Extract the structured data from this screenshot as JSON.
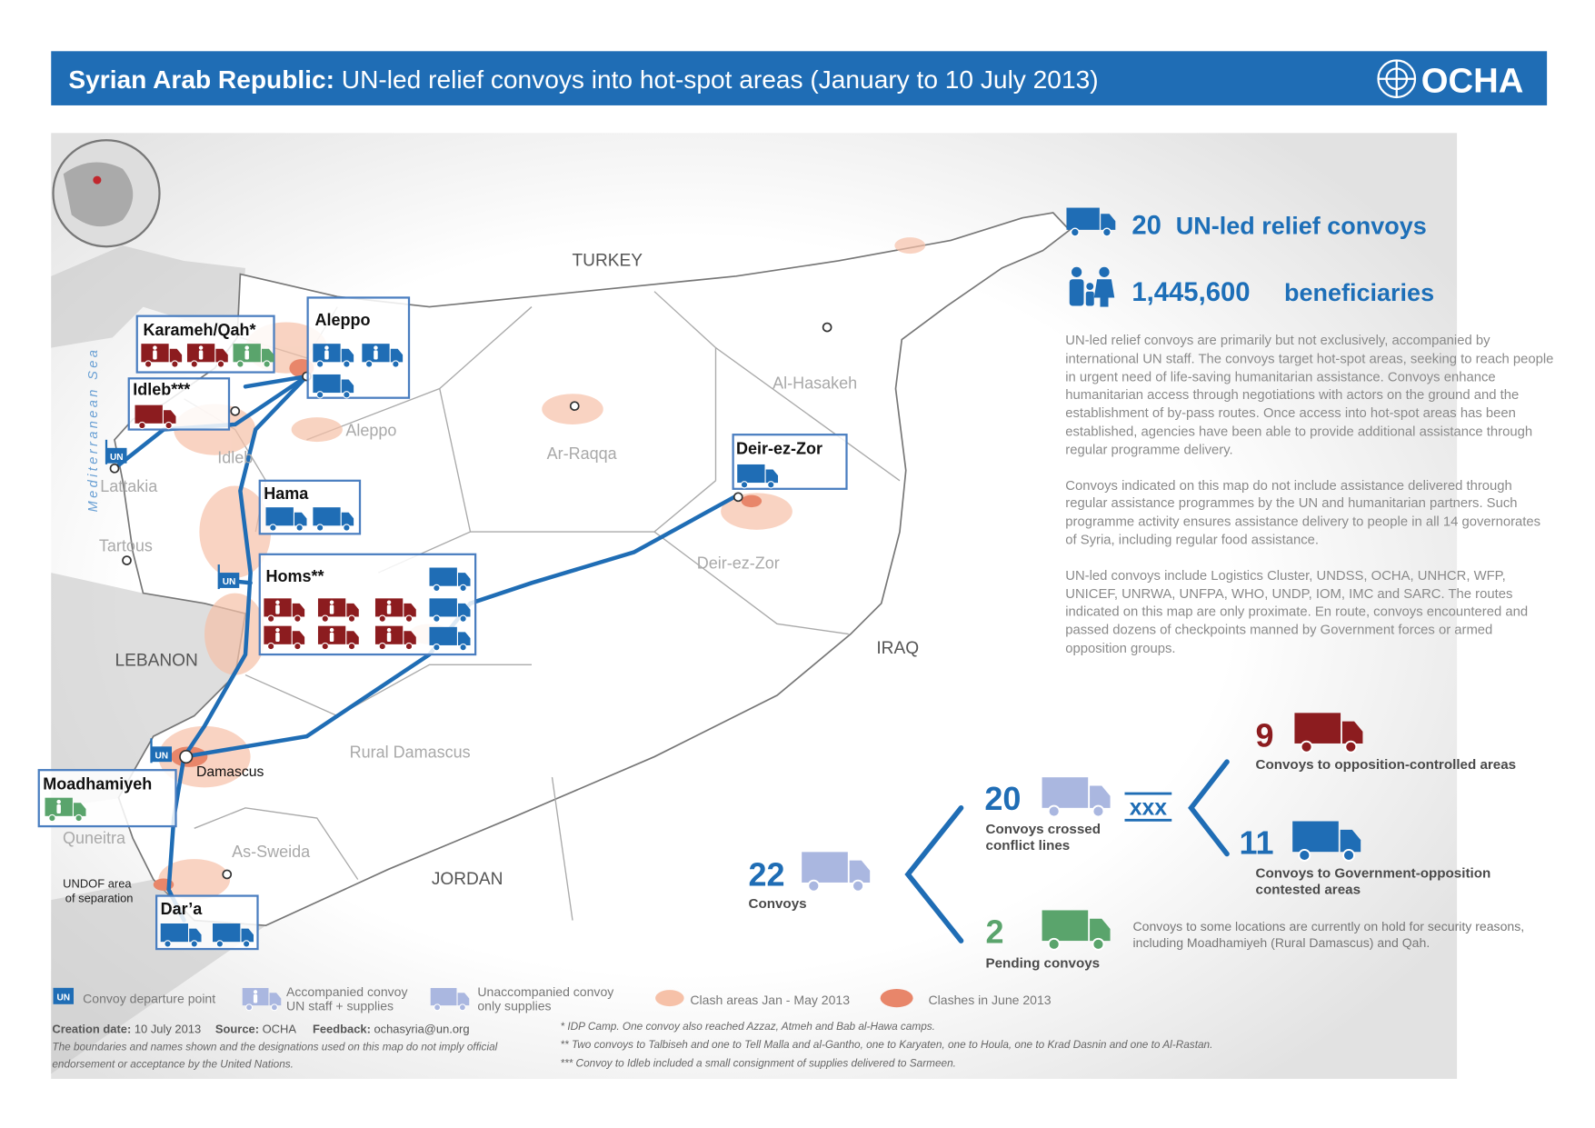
{
  "header": {
    "title_bold": "Syrian Arab Republic:",
    "title": "UN-led relief convoys into hot-spot areas (January to 10 July 2013)",
    "logo": "OCHA"
  },
  "map": {
    "countries": [
      "TURKEY",
      "LEBANON",
      "IRAQ",
      "JORDAN"
    ],
    "sea": "Mediterranean Sea",
    "governorates": [
      "Al-Hasakeh",
      "Aleppo",
      "Ar-Raqqa",
      "Idleb",
      "Lattakia",
      "Tartous",
      "Deir-ez-Zor",
      "Rural Damascus",
      "As-Sweida",
      "Quneitra"
    ],
    "capital": "Damascus",
    "undof": [
      "UNDOF area",
      "of separation"
    ],
    "un_flag": "UN"
  },
  "locations": [
    "Karameh/Qah*",
    "Aleppo",
    "Idleb***",
    "Deir-ez-Zor",
    "Hama",
    "Homs**",
    "Moadhamiyeh",
    "Dar’a"
  ],
  "summary": {
    "convoys": {
      "number": "20",
      "label": "UN-led relief convoys"
    },
    "beneficiaries": {
      "number": "1,445,600",
      "label": "beneficiaries"
    },
    "paragraphs": [
      "UN-led relief convoys are primarily but not exclusively, accompanied by international UN staff. The convoys target hot-spot areas, seeking to reach people in urgent need of life-saving humanitarian assistance. Convoys enhance humanitarian access through negotiations with actors on the ground and the establishment of by-pass routes. Once access into hot-spot areas has been established, agencies have been able to provide additional assistance through regular programme delivery.",
      "Convoys indicated on this map do not include assistance delivered through regular assistance programmes by the UN and humanitarian partners. Such programme activity ensures assistance delivery to people in all 14 governorates of Syria, including regular food assistance.",
      "UN-led convoys include Logistics Cluster, UNDSS, OCHA, UNHCR, WFP, UNICEF, UNRWA, UNFPA, WHO, UNDP, IOM, IMC and SARC. The routes indicated on this map are only proximate. En route, convoys encountered and passed dozens of checkpoints manned by Government forces or armed opposition groups."
    ]
  },
  "breakdown": {
    "total": {
      "number": "22",
      "label": "Convoys"
    },
    "crossed": {
      "number": "20",
      "label": [
        "Convoys crossed",
        "conflict lines"
      ],
      "symbol": "xxx"
    },
    "opposition": {
      "number": "9",
      "label": "Convoys to opposition-controlled areas"
    },
    "contested": {
      "number": "11",
      "label": [
        "Convoys to Government-opposition",
        "contested areas"
      ]
    },
    "pending": {
      "number": "2",
      "label": "Pending convoys",
      "note": "Convoys to some locations are currently on hold for security reasons, including Moadhamiyeh (Rural Damascus) and Qah."
    }
  },
  "legend": {
    "departure": "Convoy departure point",
    "accompanied": [
      "Accompanied convoy",
      "UN staff + supplies"
    ],
    "unaccompanied": [
      "Unaccompanied convoy",
      "only supplies"
    ],
    "clash_jan_may": "Clash areas Jan - May 2013",
    "clash_june": "Clashes in June 2013"
  },
  "footer": {
    "creation_label": "Creation date:",
    "creation_date": "10 July 2013",
    "source_label": "Source:",
    "source": "OCHA",
    "feedback_label": "Feedback:",
    "feedback": "ochasyria@un.org",
    "disclaimer": [
      "The boundaries and names shown and the designations used on this map do not imply official",
      "endorsement or acceptance by the United Nations."
    ],
    "notes": [
      "* IDP Camp. One convoy also reached Azzaz, Atmeh and Bab al-Hawa camps.",
      "** Two convoys to Talbiseh and one to Tell Malla and al-Gantho, one to Karyaten, one to Houla, one to Krad Dasnin and one to Al-Rastan.",
      "*** Convoy to Idleb included a small consignment of supplies delivered to Sarmeen."
    ]
  }
}
